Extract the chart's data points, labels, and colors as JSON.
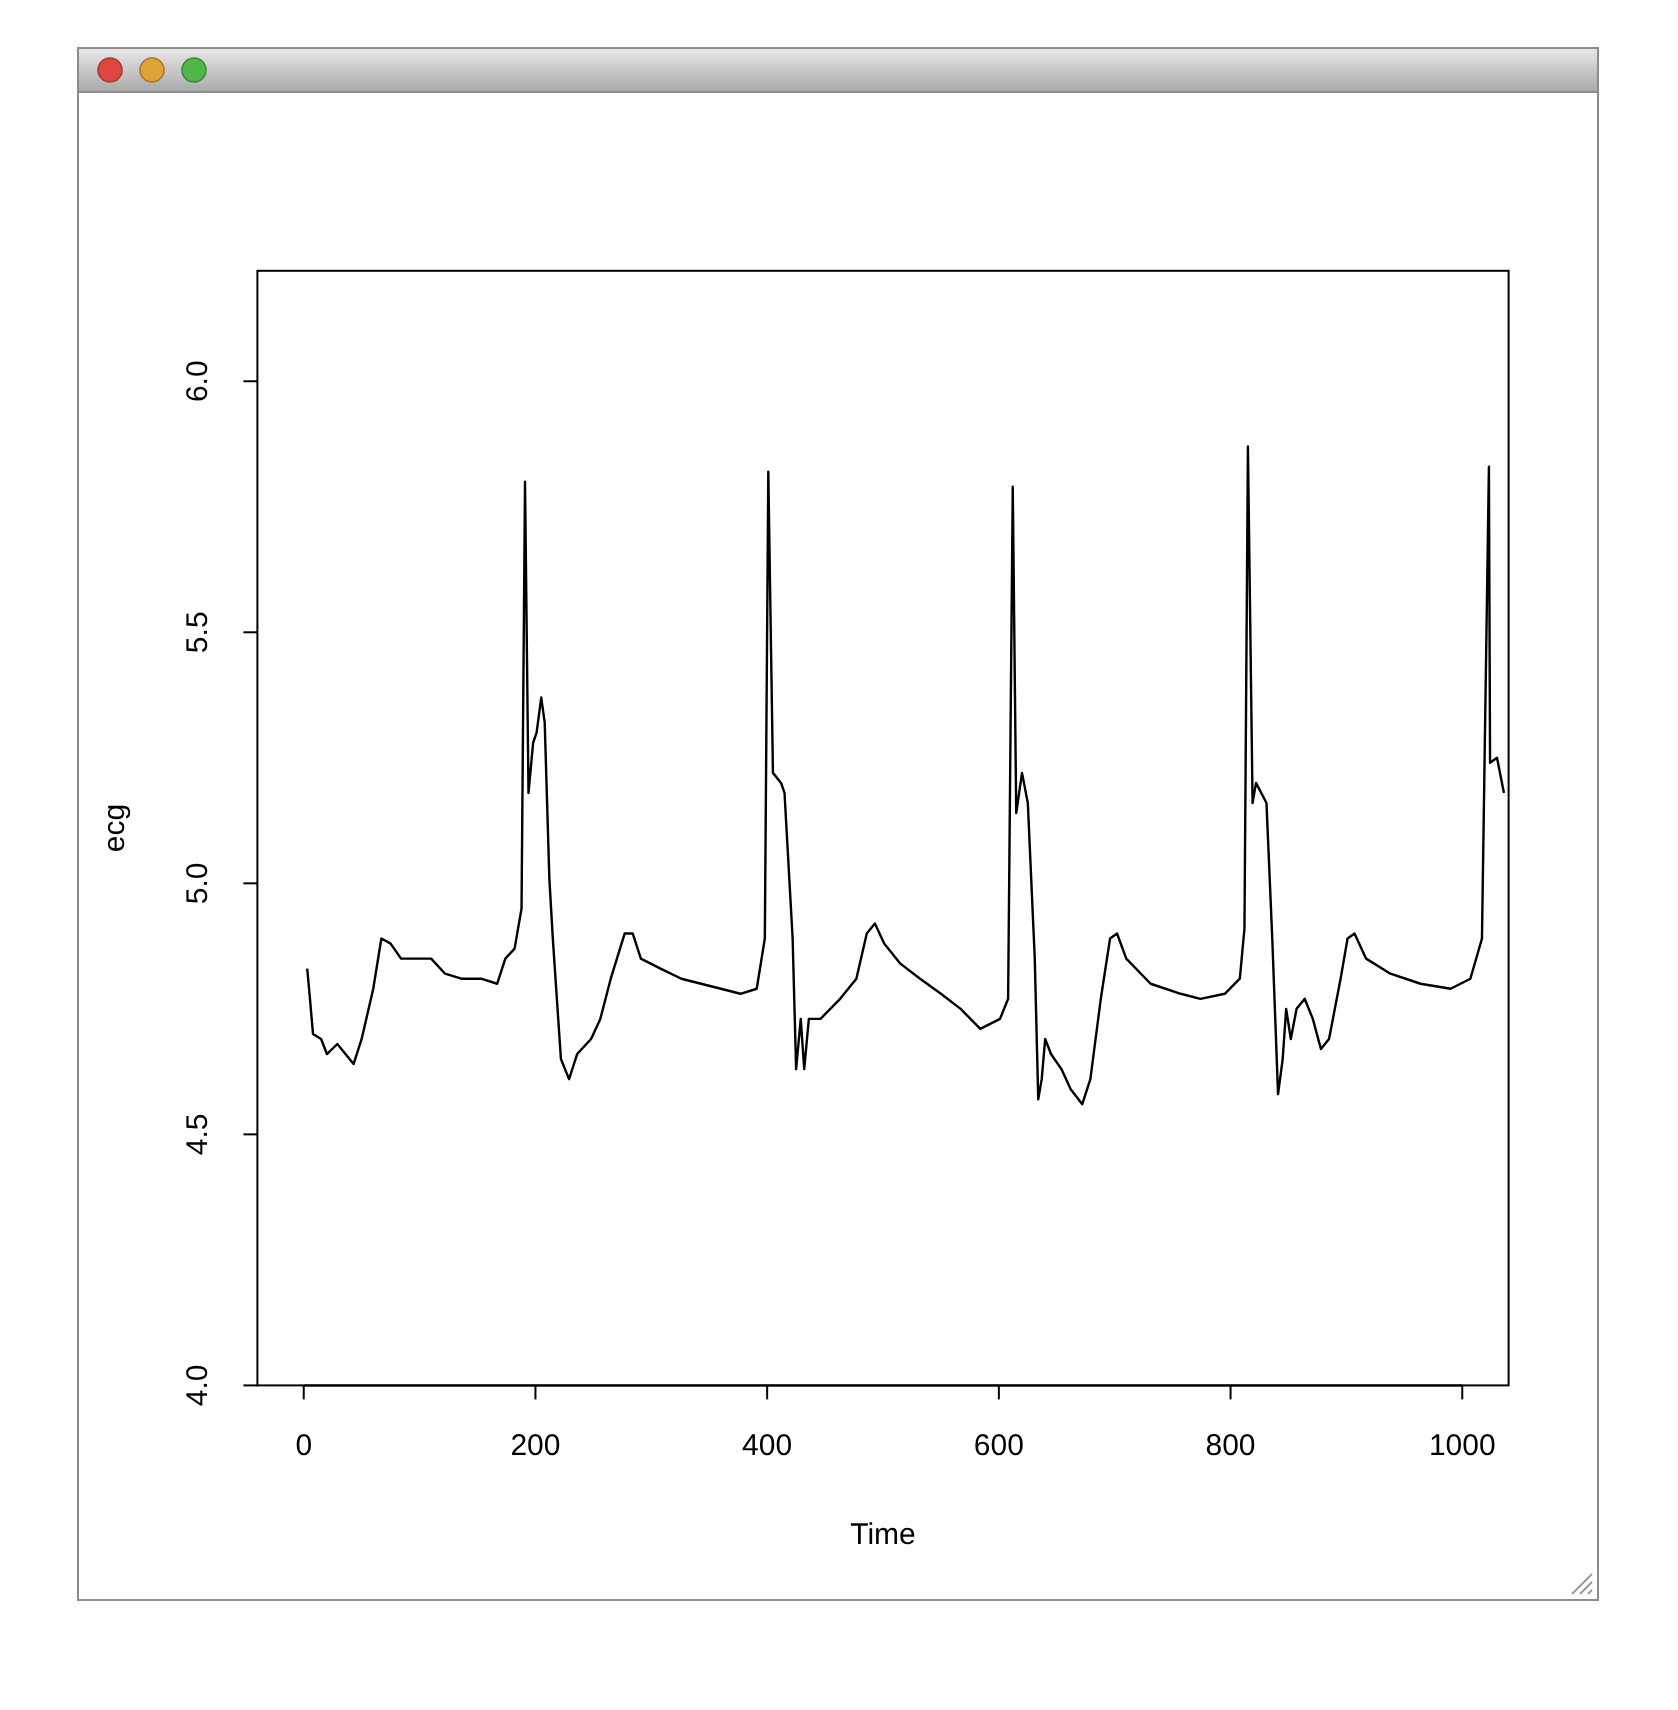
{
  "chart_data": {
    "type": "line",
    "xlabel": "Time",
    "ylabel": "ecg",
    "xlim": [
      -40,
      1040
    ],
    "ylim": [
      4,
      6.22
    ],
    "xticks": [
      0,
      200,
      400,
      600,
      800,
      1000
    ],
    "yticks": [
      {
        "value": 4,
        "label": "4.0"
      },
      {
        "value": 4.5,
        "label": "4.5"
      },
      {
        "value": 5,
        "label": "5.0"
      },
      {
        "value": 5.5,
        "label": "5.5"
      },
      {
        "value": 6,
        "label": "6.0"
      }
    ],
    "grid": false,
    "marker": "none",
    "line_style": "solid",
    "series": [
      {
        "color": "#000000",
        "x": [
          3,
          5,
          8,
          15,
          20,
          29,
          36,
          43,
          50,
          60,
          67,
          75,
          84,
          101,
          110,
          122,
          136,
          153,
          167,
          174,
          182,
          188,
          191,
          194,
          198,
          201,
          205,
          208,
          212,
          215,
          222,
          229,
          236,
          248,
          256,
          265,
          277,
          284,
          291,
          308,
          326,
          343,
          360,
          377,
          391,
          398,
          401,
          405,
          412,
          415,
          422,
          425,
          429,
          432,
          436,
          446,
          463,
          477,
          486,
          493,
          501,
          515,
          532,
          550,
          567,
          584,
          601,
          608,
          612,
          615,
          620,
          625,
          631,
          634,
          637,
          640,
          645,
          654,
          662,
          672,
          679,
          688,
          696,
          702,
          710,
          731,
          757,
          774,
          795,
          808,
          812,
          815,
          819,
          822,
          831,
          836,
          841,
          845,
          848,
          852,
          857,
          864,
          871,
          878,
          885,
          895,
          901,
          907,
          917,
          938,
          964,
          990,
          1007,
          1017,
          1023,
          1024,
          1030,
          1036
        ],
        "values": [
          4.83,
          4.78,
          4.7,
          4.69,
          4.66,
          4.68,
          4.66,
          4.64,
          4.69,
          4.79,
          4.89,
          4.88,
          4.85,
          4.85,
          4.85,
          4.82,
          4.81,
          4.81,
          4.8,
          4.85,
          4.87,
          4.95,
          5.8,
          5.18,
          5.28,
          5.3,
          5.37,
          5.32,
          5.01,
          4.89,
          4.65,
          4.61,
          4.66,
          4.69,
          4.73,
          4.81,
          4.9,
          4.9,
          4.85,
          4.83,
          4.81,
          4.8,
          4.79,
          4.78,
          4.79,
          4.89,
          5.82,
          5.22,
          5.2,
          5.18,
          4.89,
          4.63,
          4.73,
          4.63,
          4.73,
          4.73,
          4.77,
          4.81,
          4.9,
          4.92,
          4.88,
          4.84,
          4.81,
          4.78,
          4.75,
          4.71,
          4.73,
          4.77,
          5.79,
          5.14,
          5.22,
          5.16,
          4.85,
          4.57,
          4.61,
          4.69,
          4.66,
          4.63,
          4.59,
          4.56,
          4.61,
          4.77,
          4.89,
          4.9,
          4.85,
          4.8,
          4.78,
          4.77,
          4.78,
          4.81,
          4.91,
          5.87,
          5.16,
          5.2,
          5.16,
          4.89,
          4.58,
          4.65,
          4.75,
          4.69,
          4.75,
          4.77,
          4.73,
          4.67,
          4.69,
          4.81,
          4.89,
          4.9,
          4.85,
          4.82,
          4.8,
          4.79,
          4.81,
          4.89,
          5.83,
          5.24,
          5.25,
          5.18
        ]
      }
    ]
  }
}
